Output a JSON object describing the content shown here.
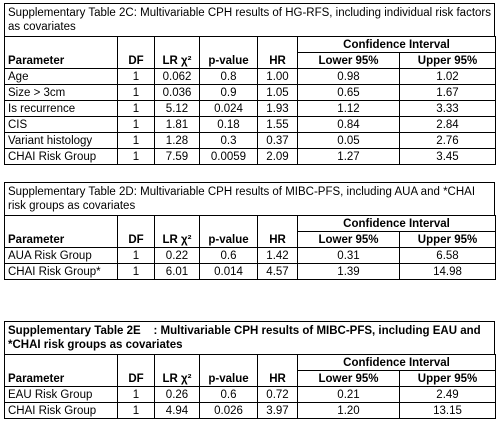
{
  "tables": [
    {
      "caption": "Supplementary Table 2C: Multivariable CPH results of HG-RFS, including individual risk factors as covariates",
      "caption_bold": false,
      "group_header": "Confidence Interval",
      "columns": [
        "Parameter",
        "DF",
        "LR χ²",
        "p-value",
        "HR",
        "Lower 95%",
        "Upper 95%"
      ],
      "rows": [
        [
          "Age",
          "1",
          "0.062",
          "0.8",
          "1.00",
          "0.98",
          "1.02"
        ],
        [
          "Size > 3cm",
          "1",
          "0.036",
          "0.9",
          "1.05",
          "0.65",
          "1.67"
        ],
        [
          "Is recurrence",
          "1",
          "5.12",
          "0.024",
          "1.93",
          "1.12",
          "3.33"
        ],
        [
          "CIS",
          "1",
          "1.81",
          "0.18",
          "1.55",
          "0.84",
          "2.84"
        ],
        [
          "Variant histology",
          "1",
          "1.28",
          "0.3",
          "0.37",
          "0.05",
          "2.76"
        ],
        [
          "CHAI Risk Group",
          "1",
          "7.59",
          "0.0059",
          "2.09",
          "1.27",
          "3.45"
        ]
      ]
    },
    {
      "caption": "Supplementary Table 2D: Multivariable CPH results of MIBC-PFS, including AUA and *CHAI risk groups as covariates",
      "caption_bold": false,
      "group_header": "Confidence Interval",
      "columns": [
        "Parameter",
        "DF",
        "LR χ²",
        "p-value",
        "HR",
        "Lower 95%",
        "Upper 95%"
      ],
      "rows": [
        [
          "AUA Risk Group",
          "1",
          "0.22",
          "0.6",
          "1.42",
          "0.31",
          "6.58"
        ],
        [
          "CHAI Risk Group*",
          "1",
          "6.01",
          "0.014",
          "4.57",
          "1.39",
          "14.98"
        ]
      ]
    },
    {
      "caption": "Supplementary Table 2E    : Multivariable CPH results of MIBC-PFS, including EAU and *CHAI risk groups as covariates",
      "caption_bold": true,
      "group_header": "Confidence Interval",
      "columns": [
        "Parameter",
        "DF",
        "LR χ²",
        "p-value",
        "HR",
        "Lower 95%",
        "Upper 95%"
      ],
      "rows": [
        [
          "EAU Risk Group",
          "1",
          "0.26",
          "0.6",
          "0.72",
          "0.21",
          "2.49"
        ],
        [
          "CHAI Risk Group",
          "1",
          "4.94",
          "0.026",
          "3.97",
          "1.20",
          "13.15"
        ]
      ]
    }
  ]
}
